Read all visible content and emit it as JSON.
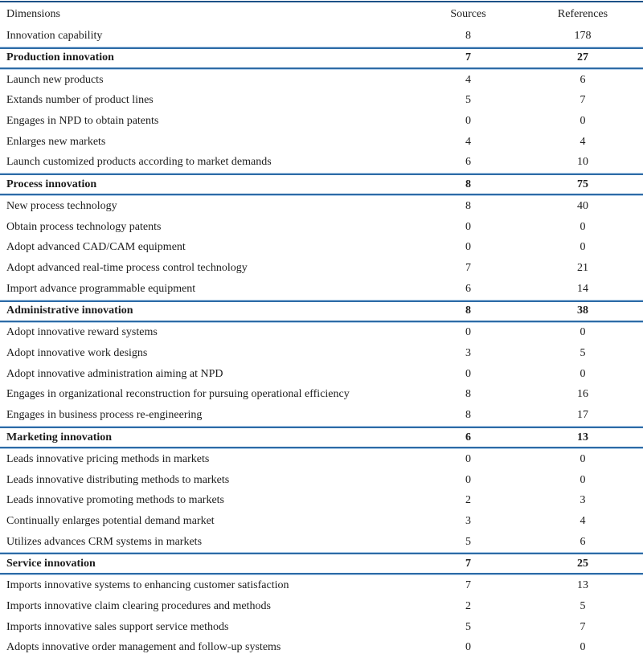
{
  "header": {
    "dimensions": "Dimensions",
    "sources": "Sources",
    "references": "References"
  },
  "colors": {
    "rule_dark": "#2d6ba6",
    "rule_light": "#b9d3ec",
    "top_rule": "#1c5187",
    "text": "#1c1c1c",
    "background": "#ffffff"
  },
  "chart_data": {
    "type": "table",
    "title": "",
    "columns": [
      "Dimensions",
      "Sources",
      "References"
    ],
    "rows": [
      {
        "label": "Innovation capability",
        "sources": "8",
        "references": "178",
        "section": false
      },
      {
        "label": "Production innovation",
        "sources": "7",
        "references": "27",
        "section": true
      },
      {
        "label": "Launch new products",
        "sources": "4",
        "references": "6",
        "section": false
      },
      {
        "label": "Extands number of product lines",
        "sources": "5",
        "references": "7",
        "section": false
      },
      {
        "label": "Engages in NPD to obtain patents",
        "sources": "0",
        "references": "0",
        "section": false
      },
      {
        "label": "Enlarges new markets",
        "sources": "4",
        "references": "4",
        "section": false
      },
      {
        "label": "Launch customized products according to market demands",
        "sources": "6",
        "references": "10",
        "section": false
      },
      {
        "label": "Process innovation",
        "sources": "8",
        "references": "75",
        "section": true
      },
      {
        "label": "New process technology",
        "sources": "8",
        "references": "40",
        "section": false
      },
      {
        "label": "Obtain process technology patents",
        "sources": "0",
        "references": "0",
        "section": false
      },
      {
        "label": "Adopt advanced CAD/CAM equipment",
        "sources": "0",
        "references": "0",
        "section": false
      },
      {
        "label": "Adopt advanced real-time process control technology",
        "sources": "7",
        "references": "21",
        "section": false
      },
      {
        "label": "Import advance programmable equipment",
        "sources": "6",
        "references": "14",
        "section": false
      },
      {
        "label": "Administrative innovation",
        "sources": "8",
        "references": "38",
        "section": true
      },
      {
        "label": "Adopt innovative reward systems",
        "sources": "0",
        "references": "0",
        "section": false
      },
      {
        "label": "Adopt innovative work designs",
        "sources": "3",
        "references": "5",
        "section": false
      },
      {
        "label": "Adopt innovative administration aiming at NPD",
        "sources": "0",
        "references": "0",
        "section": false
      },
      {
        "label": "Engages in organizational reconstruction for pursuing operational efficiency",
        "sources": "8",
        "references": "16",
        "section": false
      },
      {
        "label": "Engages in business process re-engineering",
        "sources": "8",
        "references": "17",
        "section": false
      },
      {
        "label": "Marketing innovation",
        "sources": "6",
        "references": "13",
        "section": true
      },
      {
        "label": "Leads innovative pricing methods in markets",
        "sources": "0",
        "references": "0",
        "section": false
      },
      {
        "label": "Leads innovative distributing methods to markets",
        "sources": "0",
        "references": "0",
        "section": false
      },
      {
        "label": "Leads innovative promoting methods to markets",
        "sources": "2",
        "references": "3",
        "section": false
      },
      {
        "label": "Continually enlarges potential demand market",
        "sources": "3",
        "references": "4",
        "section": false
      },
      {
        "label": "Utilizes advances CRM systems in markets",
        "sources": "5",
        "references": "6",
        "section": false
      },
      {
        "label": "Service innovation",
        "sources": "7",
        "references": "25",
        "section": true
      },
      {
        "label": "Imports innovative systems to enhancing customer satisfaction",
        "sources": "7",
        "references": "13",
        "section": false
      },
      {
        "label": "Imports innovative claim clearing procedures and methods",
        "sources": "2",
        "references": "5",
        "section": false
      },
      {
        "label": "Imports innovative sales support service methods",
        "sources": "5",
        "references": "7",
        "section": false
      },
      {
        "label": "Adopts innovative order management and follow-up systems",
        "sources": "0",
        "references": "0",
        "section": false
      }
    ]
  }
}
